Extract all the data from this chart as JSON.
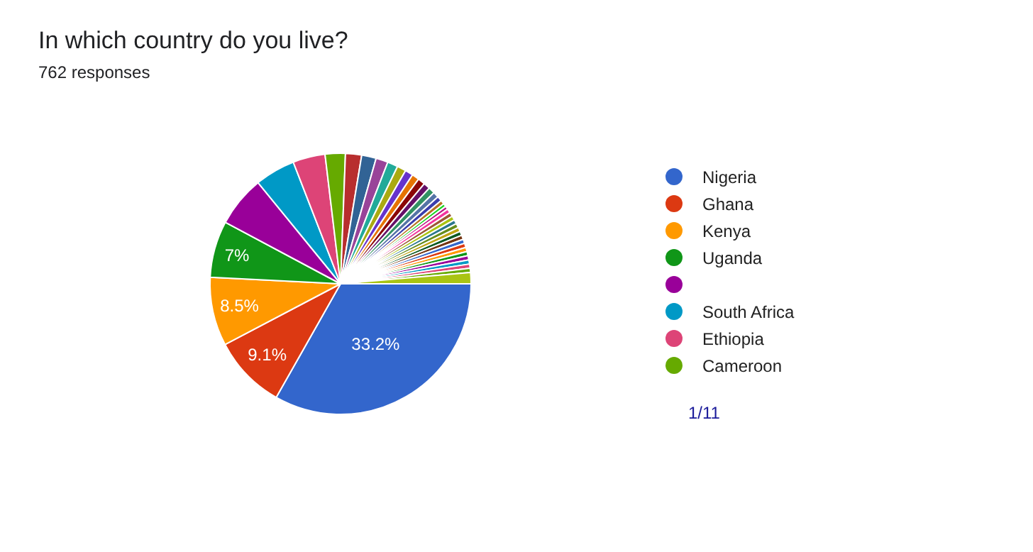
{
  "chart_data": {
    "type": "pie",
    "title": "In which country do you live?",
    "subtitle": "762 responses",
    "categories": [
      "Nigeria",
      "Ghana",
      "Kenya",
      "Uganda",
      null,
      "South Africa",
      "Ethiopia",
      "Cameroon",
      null,
      null,
      null,
      null,
      null,
      null,
      null,
      null,
      null,
      null,
      null,
      null,
      null,
      null,
      null,
      null,
      null,
      null,
      null,
      null,
      null,
      null,
      null,
      null,
      null,
      null,
      null,
      null,
      null,
      null,
      null,
      null
    ],
    "values": [
      33.2,
      9.1,
      8.5,
      7,
      6.3,
      5,
      4,
      2.5,
      2.0,
      1.8,
      1.5,
      1.3,
      1.1,
      1.0,
      0.9,
      0.9,
      0.8,
      0.8,
      0.7,
      0.6,
      0.5,
      0.4,
      0.4,
      0.52,
      0.52,
      0.52,
      0.52,
      0.52,
      0.52,
      0.52,
      0.52,
      0.52,
      0.52,
      0.52,
      0.52,
      0.52,
      0.52,
      0.52,
      0.52,
      1.38
    ],
    "colors": [
      "#3366cc",
      "#dc3912",
      "#ff9900",
      "#109618",
      "#990099",
      "#0099c6",
      "#dd4477",
      "#66aa00",
      "#b82e2e",
      "#316395",
      "#994499",
      "#22aa99",
      "#aaaa11",
      "#6633cc",
      "#e67300",
      "#8b0707",
      "#651067",
      "#329262",
      "#5574a6",
      "#3b3eac",
      "#b77322",
      "#16d620",
      "#b91383",
      "#f4359e",
      "#9c5935",
      "#a9c413",
      "#2a778d",
      "#668d1c",
      "#bea413",
      "#0c5922",
      "#743411",
      "#3366cc",
      "#dc3912",
      "#ff9900",
      "#109618",
      "#990099",
      "#0099c6",
      "#dd4477",
      "#66aa00",
      "#a9c413"
    ],
    "value_labels": [
      "33.2%",
      "9.1%",
      "8.5%",
      "7%",
      null,
      null,
      null,
      null,
      null,
      null,
      null,
      null,
      null,
      null,
      null,
      null,
      null,
      null,
      null,
      null,
      null,
      null,
      null,
      null,
      null,
      null,
      null,
      null,
      null,
      null,
      null,
      null,
      null,
      null,
      null,
      null,
      null,
      null,
      null,
      null
    ],
    "legend": "right",
    "annotations": [
      "1/11"
    ]
  }
}
